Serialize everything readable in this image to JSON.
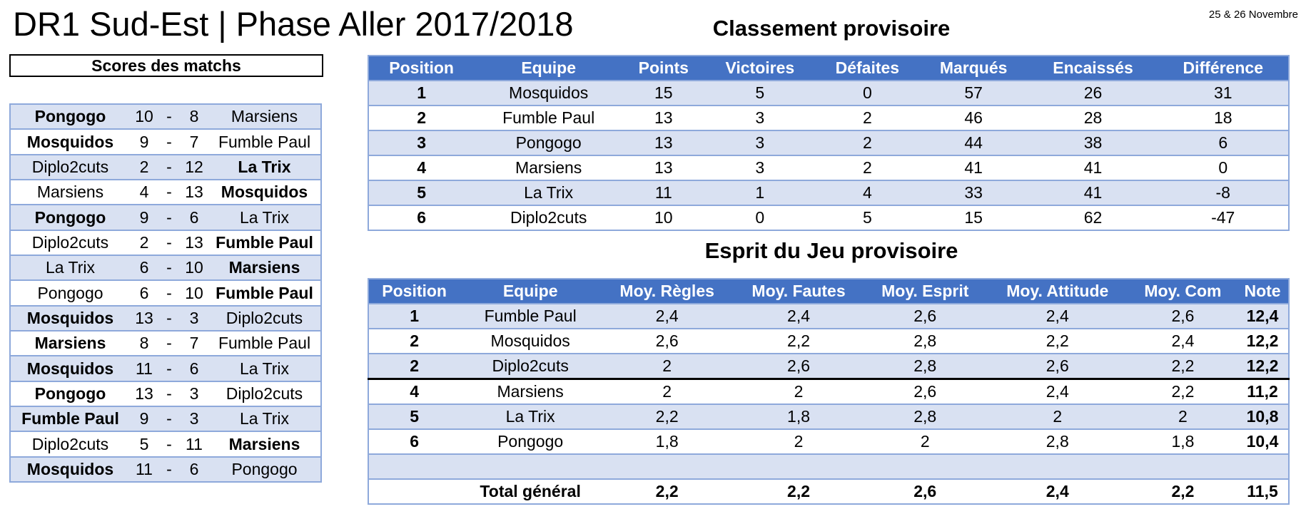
{
  "header": {
    "title": "DR1 Sud-Est | Phase Aller 2017/2018",
    "date": "25 & 26 Novembre"
  },
  "scores": {
    "heading": "Scores des matchs",
    "matches": [
      {
        "home": "Pongogo",
        "home_score": "10",
        "dash": "-",
        "away_score": "8",
        "away": "Marsiens",
        "winner": "home"
      },
      {
        "home": "Mosquidos",
        "home_score": "9",
        "dash": "-",
        "away_score": "7",
        "away": "Fumble Paul",
        "winner": "home"
      },
      {
        "home": "Diplo2cuts",
        "home_score": "2",
        "dash": "-",
        "away_score": "12",
        "away": "La Trix",
        "winner": "away"
      },
      {
        "home": "Marsiens",
        "home_score": "4",
        "dash": "-",
        "away_score": "13",
        "away": "Mosquidos",
        "winner": "away"
      },
      {
        "home": "Pongogo",
        "home_score": "9",
        "dash": "-",
        "away_score": "6",
        "away": "La Trix",
        "winner": "home"
      },
      {
        "home": "Diplo2cuts",
        "home_score": "2",
        "dash": "-",
        "away_score": "13",
        "away": "Fumble Paul",
        "winner": "away"
      },
      {
        "home": "La Trix",
        "home_score": "6",
        "dash": "-",
        "away_score": "10",
        "away": "Marsiens",
        "winner": "away"
      },
      {
        "home": "Pongogo",
        "home_score": "6",
        "dash": "-",
        "away_score": "10",
        "away": "Fumble Paul",
        "winner": "away"
      },
      {
        "home": "Mosquidos",
        "home_score": "13",
        "dash": "-",
        "away_score": "3",
        "away": "Diplo2cuts",
        "winner": "home"
      },
      {
        "home": "Marsiens",
        "home_score": "8",
        "dash": "-",
        "away_score": "7",
        "away": "Fumble Paul",
        "winner": "home"
      },
      {
        "home": "Mosquidos",
        "home_score": "11",
        "dash": "-",
        "away_score": "6",
        "away": "La Trix",
        "winner": "home"
      },
      {
        "home": "Pongogo",
        "home_score": "13",
        "dash": "-",
        "away_score": "3",
        "away": "Diplo2cuts",
        "winner": "home"
      },
      {
        "home": "Fumble Paul",
        "home_score": "9",
        "dash": "-",
        "away_score": "3",
        "away": "La Trix",
        "winner": "home"
      },
      {
        "home": "Diplo2cuts",
        "home_score": "5",
        "dash": "-",
        "away_score": "11",
        "away": "Marsiens",
        "winner": "away"
      },
      {
        "home": "Mosquidos",
        "home_score": "11",
        "dash": "-",
        "away_score": "6",
        "away": "Pongogo",
        "winner": "home"
      }
    ]
  },
  "classement": {
    "heading": "Classement provisoire",
    "columns": [
      "Position",
      "Equipe",
      "Points",
      "Victoires",
      "Défaites",
      "Marqués",
      "Encaissés",
      "Différence"
    ],
    "rows": [
      [
        "1",
        "Mosquidos",
        "15",
        "5",
        "0",
        "57",
        "26",
        "31"
      ],
      [
        "2",
        "Fumble Paul",
        "13",
        "3",
        "2",
        "46",
        "28",
        "18"
      ],
      [
        "3",
        "Pongogo",
        "13",
        "3",
        "2",
        "44",
        "38",
        "6"
      ],
      [
        "4",
        "Marsiens",
        "13",
        "3",
        "2",
        "41",
        "41",
        "0"
      ],
      [
        "5",
        "La Trix",
        "11",
        "1",
        "4",
        "33",
        "41",
        "-8"
      ],
      [
        "6",
        "Diplo2cuts",
        "10",
        "0",
        "5",
        "15",
        "62",
        "-47"
      ]
    ]
  },
  "esprit": {
    "heading": "Esprit du Jeu provisoire",
    "columns": [
      "Position",
      "Equipe",
      "Moy. Règles",
      "Moy. Fautes",
      "Moy. Esprit",
      "Moy. Attitude",
      "Moy. Com",
      "Note"
    ],
    "rows": [
      [
        "1",
        "Fumble Paul",
        "2,4",
        "2,4",
        "2,6",
        "2,4",
        "2,6",
        "12,4"
      ],
      [
        "2",
        "Mosquidos",
        "2,6",
        "2,2",
        "2,8",
        "2,2",
        "2,4",
        "12,2"
      ],
      [
        "2",
        "Diplo2cuts",
        "2",
        "2,6",
        "2,8",
        "2,6",
        "2,2",
        "12,2"
      ],
      [
        "4",
        "Marsiens",
        "2",
        "2",
        "2,6",
        "2,4",
        "2,2",
        "11,2"
      ],
      [
        "5",
        "La Trix",
        "2,2",
        "1,8",
        "2,8",
        "2",
        "2",
        "10,8"
      ],
      [
        "6",
        "Pongogo",
        "1,8",
        "2",
        "2",
        "2,8",
        "1,8",
        "10,4"
      ]
    ],
    "blank_row": [
      "",
      "",
      "",
      "",
      "",
      "",
      "",
      ""
    ],
    "total": [
      "",
      "Total général",
      "2,2",
      "2,2",
      "2,6",
      "2,4",
      "2,2",
      "11,5"
    ]
  },
  "colors": {
    "header_bg": "#4472c4",
    "band_bg": "#d9e1f2",
    "border": "#8ea9db"
  }
}
